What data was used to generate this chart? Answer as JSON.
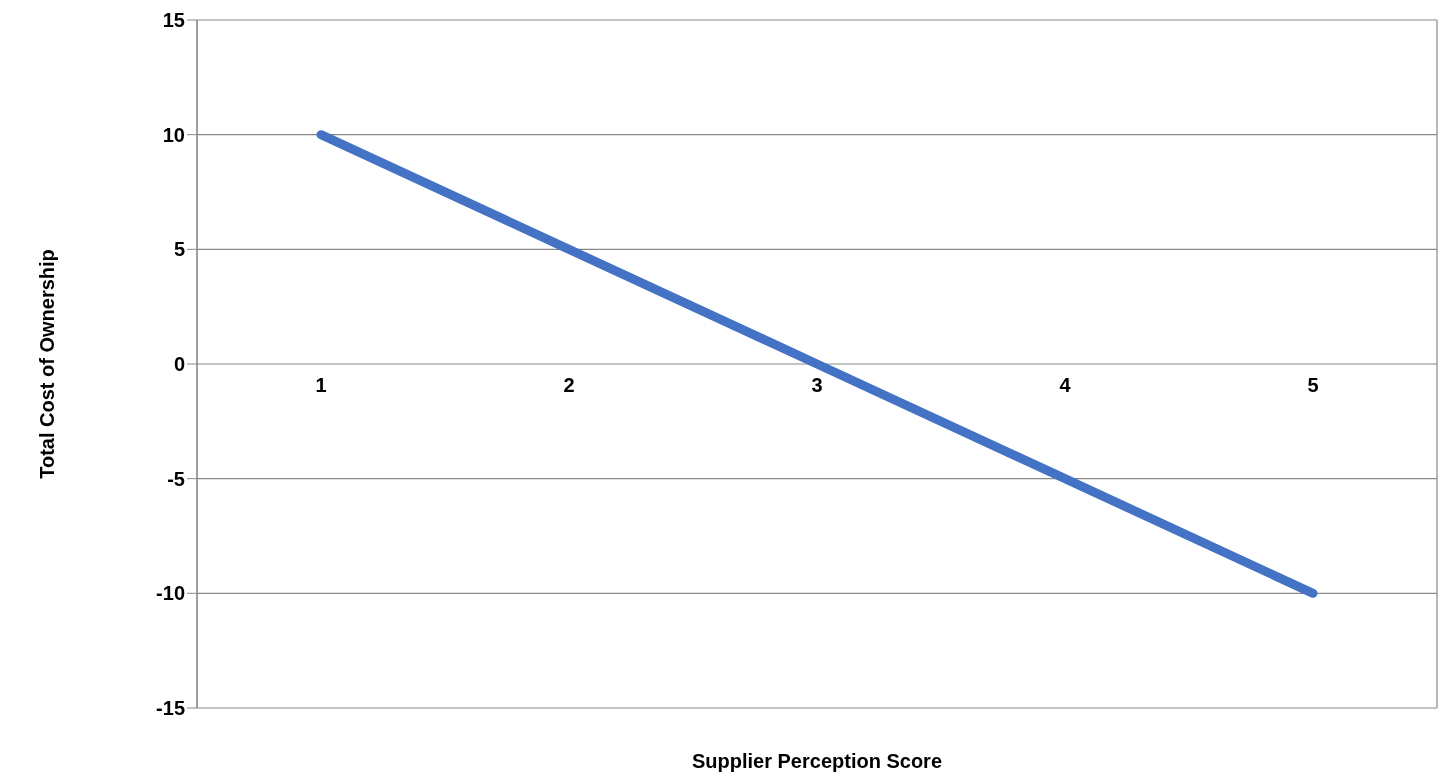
{
  "chart_data": {
    "type": "line",
    "xlabel": "Supplier Perception Score",
    "ylabel": "Total Cost of Ownership",
    "categories": [
      "1",
      "2",
      "3",
      "4",
      "5"
    ],
    "series": [
      {
        "color": "#4472c4",
        "values": [
          10,
          5,
          0,
          -5,
          -10
        ]
      }
    ],
    "ylim": [
      -15,
      15
    ],
    "yticks": [
      -15,
      -10,
      -5,
      0,
      5,
      10,
      15
    ],
    "grid": "y",
    "marker": "none",
    "line_style": "solid"
  }
}
